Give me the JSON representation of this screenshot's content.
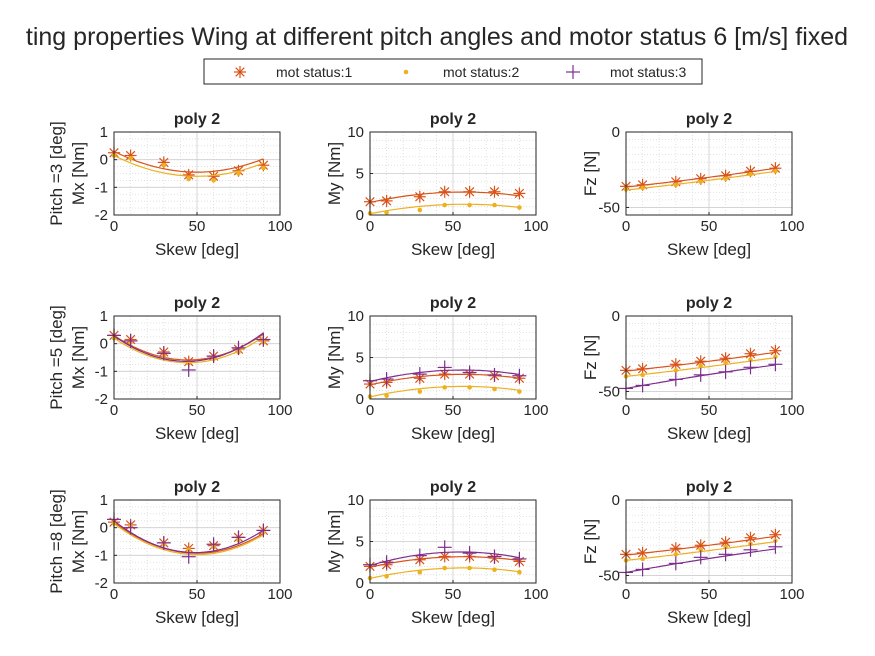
{
  "figure": {
    "title": "ting properties Wing at different pitch angles and motor status 6 [m/s] fixed",
    "legend": [
      "mot status:1",
      "mot status:2",
      "mot status:3"
    ]
  },
  "colors": {
    "mot status:1": "#d95319",
    "mot status:2": "#edb120",
    "mot status:3": "#7e2f8e"
  },
  "chart_data": [
    {
      "type": "scatter",
      "row": 0,
      "col": 0,
      "title": "poly 2",
      "xlabel": "Skew [deg]",
      "ylabel": "Mx [Nm]",
      "rowlabel": "Pitch =3 [deg]",
      "xlim": [
        0,
        100
      ],
      "ylim": [
        -2,
        1
      ],
      "xticks": [
        "0",
        "50",
        "100"
      ],
      "yticks": [
        "-2",
        "-1",
        "0",
        "1"
      ],
      "grid": true,
      "x": [
        0,
        10,
        30,
        45,
        60,
        75,
        90
      ],
      "series": [
        {
          "name": "mot status:1",
          "marker": "asterisk",
          "points": [
            0.25,
            0.15,
            -0.1,
            -0.55,
            -0.6,
            -0.4,
            -0.2
          ],
          "fit": [
            0.3,
            -0.03,
            0.0003
          ]
        },
        {
          "name": "mot status:2",
          "marker": "dot",
          "points": [
            0.15,
            0.05,
            -0.2,
            -0.7,
            -0.75,
            -0.5,
            -0.3
          ],
          "fit": [
            0.15,
            -0.03,
            0.0003
          ]
        }
      ]
    },
    {
      "type": "scatter",
      "row": 0,
      "col": 1,
      "title": "poly 2",
      "xlabel": "Skew [deg]",
      "ylabel": "My [Nm]",
      "rowlabel": "",
      "xlim": [
        0,
        100
      ],
      "ylim": [
        0,
        10
      ],
      "xticks": [
        "0",
        "50",
        "100"
      ],
      "yticks": [
        "0",
        "5",
        "10"
      ],
      "grid": true,
      "x": [
        0,
        10,
        30,
        45,
        60,
        75,
        90
      ],
      "series": [
        {
          "name": "mot status:1",
          "marker": "asterisk",
          "points": [
            1.6,
            1.7,
            2.2,
            2.8,
            2.8,
            2.8,
            2.6
          ],
          "fit": [
            1.5,
            0.045,
            -0.0004
          ]
        },
        {
          "name": "mot status:2",
          "marker": "dot",
          "points": [
            0.2,
            0.3,
            0.6,
            1.2,
            1.2,
            1.2,
            0.9
          ],
          "fit": [
            0.15,
            0.04,
            -0.00035
          ]
        }
      ]
    },
    {
      "type": "scatter",
      "row": 0,
      "col": 2,
      "title": "poly 2",
      "xlabel": "Skew [deg]",
      "ylabel": "Fz [N]",
      "rowlabel": "",
      "xlim": [
        0,
        100
      ],
      "ylim": [
        -55,
        0
      ],
      "xticks": [
        "0",
        "50",
        "100"
      ],
      "yticks": [
        "-50",
        "0"
      ],
      "grid": true,
      "x": [
        0,
        10,
        30,
        45,
        60,
        75,
        90
      ],
      "series": [
        {
          "name": "mot status:1",
          "marker": "asterisk",
          "points": [
            -36,
            -35,
            -33,
            -31,
            -29,
            -26,
            -24
          ],
          "fit": [
            -36.5,
            0.12,
            0.0002
          ]
        },
        {
          "name": "mot status:2",
          "marker": "dot",
          "points": [
            -38,
            -37,
            -35,
            -33,
            -31,
            -28,
            -26
          ],
          "fit": [
            -38.5,
            0.12,
            0.0002
          ]
        }
      ]
    },
    {
      "type": "scatter",
      "row": 1,
      "col": 0,
      "title": "poly 2",
      "xlabel": "Skew [deg]",
      "ylabel": "Mx [Nm]",
      "rowlabel": "Pitch =5 [deg]",
      "xlim": [
        0,
        100
      ],
      "ylim": [
        -2,
        1
      ],
      "xticks": [
        "0",
        "50",
        "100"
      ],
      "yticks": [
        "-2",
        "-1",
        "0",
        "1"
      ],
      "grid": true,
      "x": [
        0,
        10,
        30,
        45,
        60,
        75,
        90
      ],
      "series": [
        {
          "name": "mot status:1",
          "marker": "asterisk",
          "points": [
            0.3,
            0.15,
            -0.3,
            -0.65,
            -0.45,
            -0.2,
            0.1
          ],
          "fit": [
            0.3,
            -0.04,
            0.00045
          ]
        },
        {
          "name": "mot status:2",
          "marker": "dot",
          "points": [
            0.2,
            0.05,
            -0.45,
            -0.7,
            -0.55,
            -0.3,
            0.05
          ],
          "fit": [
            0.2,
            -0.04,
            0.00045
          ]
        },
        {
          "name": "mot status:3",
          "marker": "plus",
          "points": [
            0.3,
            0.1,
            -0.35,
            -0.95,
            -0.45,
            -0.15,
            0.15
          ],
          "fit": [
            0.28,
            -0.042,
            0.00048
          ]
        }
      ]
    },
    {
      "type": "scatter",
      "row": 1,
      "col": 1,
      "title": "poly 2",
      "xlabel": "Skew [deg]",
      "ylabel": "My [Nm]",
      "rowlabel": "",
      "xlim": [
        0,
        100
      ],
      "ylim": [
        0,
        10
      ],
      "xticks": [
        "0",
        "50",
        "100"
      ],
      "yticks": [
        "0",
        "5",
        "10"
      ],
      "grid": true,
      "x": [
        0,
        10,
        30,
        45,
        60,
        75,
        90
      ],
      "series": [
        {
          "name": "mot status:1",
          "marker": "asterisk",
          "points": [
            1.8,
            2.0,
            2.5,
            3.0,
            3.0,
            2.8,
            2.5
          ],
          "fit": [
            1.7,
            0.045,
            -0.0004
          ]
        },
        {
          "name": "mot status:2",
          "marker": "dot",
          "points": [
            0.3,
            0.4,
            0.9,
            1.4,
            1.4,
            1.2,
            0.9
          ],
          "fit": [
            0.25,
            0.045,
            -0.0004
          ]
        },
        {
          "name": "mot status:3",
          "marker": "plus",
          "points": [
            2.2,
            2.4,
            3.0,
            3.8,
            3.2,
            2.9,
            2.8
          ],
          "fit": [
            2.1,
            0.05,
            -0.00045
          ]
        }
      ]
    },
    {
      "type": "scatter",
      "row": 1,
      "col": 2,
      "title": "poly 2",
      "xlabel": "Skew [deg]",
      "ylabel": "Fz [N]",
      "rowlabel": "",
      "xlim": [
        0,
        100
      ],
      "ylim": [
        -55,
        0
      ],
      "xticks": [
        "0",
        "50",
        "100"
      ],
      "yticks": [
        "-50",
        "0"
      ],
      "grid": true,
      "x": [
        0,
        10,
        30,
        45,
        60,
        75,
        90
      ],
      "series": [
        {
          "name": "mot status:1",
          "marker": "asterisk",
          "points": [
            -36,
            -35,
            -32,
            -30,
            -28,
            -25,
            -23
          ],
          "fit": [
            -36.5,
            0.12,
            0.0002
          ]
        },
        {
          "name": "mot status:2",
          "marker": "dot",
          "points": [
            -40,
            -39,
            -36,
            -33,
            -31,
            -29,
            -27
          ],
          "fit": [
            -40,
            0.12,
            0.0002
          ]
        },
        {
          "name": "mot status:3",
          "marker": "plus",
          "points": [
            -48,
            -46,
            -42,
            -39,
            -37,
            -34,
            -32
          ],
          "fit": [
            -48,
            0.2,
            -0.0003
          ]
        }
      ]
    },
    {
      "type": "scatter",
      "row": 2,
      "col": 0,
      "title": "poly 2",
      "xlabel": "Skew [deg]",
      "ylabel": "Mx [Nm]",
      "rowlabel": "Pitch =8 [deg]",
      "xlim": [
        0,
        100
      ],
      "ylim": [
        -2,
        1
      ],
      "xticks": [
        "0",
        "50",
        "100"
      ],
      "yticks": [
        "-2",
        "-1",
        "0",
        "1"
      ],
      "grid": true,
      "x": [
        0,
        10,
        30,
        45,
        60,
        75,
        90
      ],
      "series": [
        {
          "name": "mot status:1",
          "marker": "asterisk",
          "points": [
            0.2,
            0.1,
            -0.55,
            -0.75,
            -0.65,
            -0.35,
            -0.1
          ],
          "fit": [
            0.2,
            -0.045,
            0.00045
          ]
        },
        {
          "name": "mot status:2",
          "marker": "dot",
          "points": [
            0.15,
            0.05,
            -0.6,
            -0.8,
            -0.7,
            -0.45,
            -0.15
          ],
          "fit": [
            0.15,
            -0.045,
            0.00045
          ]
        },
        {
          "name": "mot status:3",
          "marker": "plus",
          "points": [
            0.3,
            0.0,
            -0.55,
            -1.05,
            -0.6,
            -0.35,
            -0.1
          ],
          "fit": [
            0.25,
            -0.047,
            0.00048
          ]
        }
      ]
    },
    {
      "type": "scatter",
      "row": 2,
      "col": 1,
      "title": "poly 2",
      "xlabel": "Skew [deg]",
      "ylabel": "My [Nm]",
      "rowlabel": "",
      "xlim": [
        0,
        100
      ],
      "ylim": [
        0,
        10
      ],
      "xticks": [
        "0",
        "50",
        "100"
      ],
      "yticks": [
        "0",
        "5",
        "10"
      ],
      "grid": true,
      "x": [
        0,
        10,
        30,
        45,
        60,
        75,
        90
      ],
      "series": [
        {
          "name": "mot status:1",
          "marker": "asterisk",
          "points": [
            2.0,
            2.2,
            2.8,
            3.2,
            3.2,
            3.0,
            2.6
          ],
          "fit": [
            1.9,
            0.045,
            -0.0004
          ]
        },
        {
          "name": "mot status:2",
          "marker": "dot",
          "points": [
            0.6,
            0.8,
            1.3,
            1.8,
            1.8,
            1.6,
            1.3
          ],
          "fit": [
            0.55,
            0.045,
            -0.0004
          ]
        },
        {
          "name": "mot status:3",
          "marker": "plus",
          "points": [
            2.2,
            2.5,
            3.3,
            4.3,
            3.6,
            3.2,
            2.9
          ],
          "fit": [
            2.1,
            0.06,
            -0.00055
          ]
        }
      ]
    },
    {
      "type": "scatter",
      "row": 2,
      "col": 2,
      "title": "poly 2",
      "xlabel": "Skew [deg]",
      "ylabel": "Fz [N]",
      "rowlabel": "",
      "xlim": [
        0,
        100
      ],
      "ylim": [
        -55,
        0
      ],
      "xticks": [
        "0",
        "50",
        "100"
      ],
      "yticks": [
        "-50",
        "0"
      ],
      "grid": true,
      "x": [
        0,
        10,
        30,
        45,
        60,
        75,
        90
      ],
      "series": [
        {
          "name": "mot status:1",
          "marker": "asterisk",
          "points": [
            -36,
            -35,
            -32,
            -30,
            -28,
            -25,
            -23
          ],
          "fit": [
            -36.5,
            0.12,
            0.0002
          ]
        },
        {
          "name": "mot status:2",
          "marker": "dot",
          "points": [
            -40,
            -39,
            -36,
            -33,
            -31,
            -29,
            -27
          ],
          "fit": [
            -40,
            0.12,
            0.0002
          ]
        },
        {
          "name": "mot status:3",
          "marker": "plus",
          "points": [
            -48,
            -46,
            -42,
            -38,
            -36,
            -33,
            -31
          ],
          "fit": [
            -48,
            0.2,
            -0.0003
          ]
        }
      ]
    }
  ]
}
